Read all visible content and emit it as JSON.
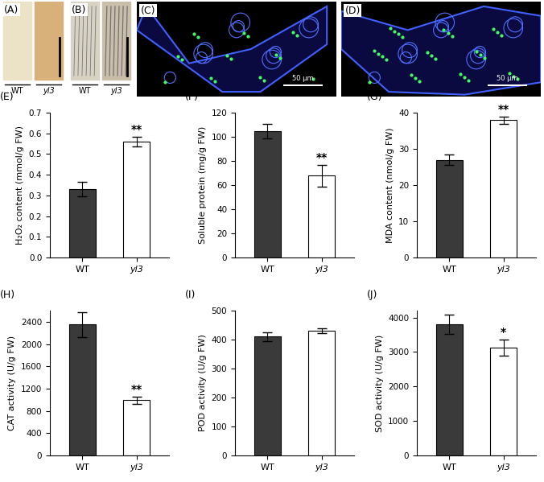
{
  "image_panels": [
    {
      "label": "(A)",
      "items": [
        "WT",
        "yl3"
      ]
    },
    {
      "label": "(B)",
      "items": [
        "WT",
        "yl3"
      ]
    },
    {
      "label": "(C)",
      "scale_bar": "50 μm"
    },
    {
      "label": "(D)",
      "scale_bar": "50 μm"
    }
  ],
  "chart_data": [
    {
      "type": "bar",
      "title": "(E)",
      "y_label": "H₂O₂ content (mmol/g FW)",
      "categories": [
        "WT",
        "yl3"
      ],
      "values": [
        0.33,
        0.56
      ],
      "errors": [
        0.035,
        0.025
      ],
      "colors": [
        "#3a3a3a",
        "#ffffff"
      ],
      "ylim": [
        0.0,
        0.7
      ],
      "yticks": [
        0.0,
        0.1,
        0.2,
        0.3,
        0.4,
        0.5,
        0.6,
        0.7
      ],
      "annotations": [
        {
          "category": "yl3",
          "text": "**"
        }
      ]
    },
    {
      "type": "bar",
      "title": "(F)",
      "y_label": "Soluble protein (mg/g FW)",
      "categories": [
        "WT",
        "yl3"
      ],
      "values": [
        105,
        68
      ],
      "errors": [
        6,
        9
      ],
      "colors": [
        "#3a3a3a",
        "#ffffff"
      ],
      "ylim": [
        0,
        120
      ],
      "yticks": [
        0,
        20,
        40,
        60,
        80,
        100,
        120
      ],
      "annotations": [
        {
          "category": "yl3",
          "text": "**"
        }
      ]
    },
    {
      "type": "bar",
      "title": "(G)",
      "y_label": "MDA content (nmol/g FW)",
      "categories": [
        "WT",
        "yl3"
      ],
      "values": [
        27,
        38
      ],
      "errors": [
        1.5,
        1
      ],
      "colors": [
        "#3a3a3a",
        "#ffffff"
      ],
      "ylim": [
        0,
        40
      ],
      "yticks": [
        0,
        10,
        20,
        30,
        40
      ],
      "annotations": [
        {
          "category": "yl3",
          "text": "**"
        }
      ]
    },
    {
      "type": "bar",
      "title": "(H)",
      "y_label": "CAT activity (U/g FW)",
      "categories": [
        "WT",
        "yl3"
      ],
      "values": [
        2350,
        990
      ],
      "errors": [
        220,
        70
      ],
      "colors": [
        "#3a3a3a",
        "#ffffff"
      ],
      "ylim": [
        0,
        2600
      ],
      "yticks": [
        0,
        400,
        800,
        1200,
        1600,
        2000,
        2400
      ],
      "annotations": [
        {
          "category": "yl3",
          "text": "**"
        }
      ]
    },
    {
      "type": "bar",
      "title": "(I)",
      "y_label": "POD activity (U/g FW)",
      "categories": [
        "WT",
        "yl3"
      ],
      "values": [
        410,
        430
      ],
      "errors": [
        15,
        8
      ],
      "colors": [
        "#3a3a3a",
        "#ffffff"
      ],
      "ylim": [
        0,
        500
      ],
      "yticks": [
        0,
        100,
        200,
        300,
        400,
        500
      ]
    },
    {
      "type": "bar",
      "title": "(J)",
      "y_label": "SOD activity (U/g FW)",
      "categories": [
        "WT",
        "yl3"
      ],
      "values": [
        3800,
        3130
      ],
      "errors": [
        280,
        240
      ],
      "colors": [
        "#3a3a3a",
        "#ffffff"
      ],
      "ylim": [
        0,
        4200
      ],
      "yticks": [
        0,
        1000,
        2000,
        3000,
        4000
      ],
      "annotations": [
        {
          "category": "yl3",
          "text": "*"
        }
      ]
    }
  ]
}
